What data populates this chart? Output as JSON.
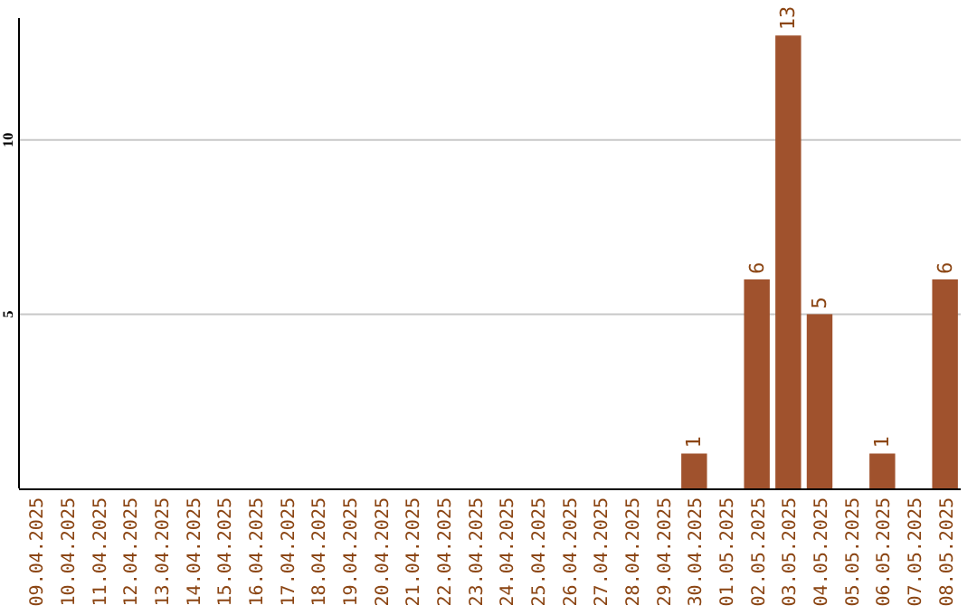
{
  "chart_data": {
    "type": "bar",
    "categories": [
      "09.04.2025",
      "10.04.2025",
      "11.04.2025",
      "12.04.2025",
      "13.04.2025",
      "14.04.2025",
      "15.04.2025",
      "16.04.2025",
      "17.04.2025",
      "18.04.2025",
      "19.04.2025",
      "20.04.2025",
      "21.04.2025",
      "22.04.2025",
      "23.04.2025",
      "24.04.2025",
      "25.04.2025",
      "26.04.2025",
      "27.04.2025",
      "28.04.2025",
      "29.04.2025",
      "30.04.2025",
      "01.05.2025",
      "02.05.2025",
      "03.05.2025",
      "04.05.2025",
      "05.05.2025",
      "06.05.2025",
      "07.05.2025",
      "08.05.2025"
    ],
    "values": [
      0,
      0,
      0,
      0,
      0,
      0,
      0,
      0,
      0,
      0,
      0,
      0,
      0,
      0,
      0,
      0,
      0,
      0,
      0,
      0,
      0,
      1,
      0,
      6,
      13,
      5,
      0,
      1,
      0,
      6
    ],
    "value_labels": [
      null,
      null,
      null,
      null,
      null,
      null,
      null,
      null,
      null,
      null,
      null,
      null,
      null,
      null,
      null,
      null,
      null,
      null,
      null,
      null,
      null,
      "1",
      null,
      "6",
      "13",
      "5",
      null,
      "1",
      null,
      "6"
    ],
    "color": "#a0522d",
    "ylim": [
      0,
      13.5
    ],
    "yticks": [
      5,
      10
    ],
    "grid": "y"
  }
}
